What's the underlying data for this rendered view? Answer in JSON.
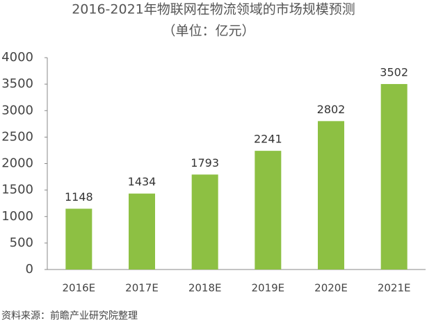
{
  "chart_data": {
    "type": "bar",
    "title": "2016-2021年物联网在物流领域的市场规模预测",
    "subtitle": "（单位：亿元）",
    "source": "资料来源：前瞻产业研究院整理",
    "categories": [
      "2016E",
      "2017E",
      "2018E",
      "2019E",
      "2020E",
      "2021E"
    ],
    "values": [
      1148,
      1434,
      1793,
      2241,
      2802,
      3502
    ],
    "color": "#8dc043",
    "ylim": [
      0,
      4000
    ],
    "yticks": [
      0,
      500,
      1000,
      1500,
      2000,
      2500,
      3000,
      3500,
      4000
    ],
    "grid": false
  }
}
